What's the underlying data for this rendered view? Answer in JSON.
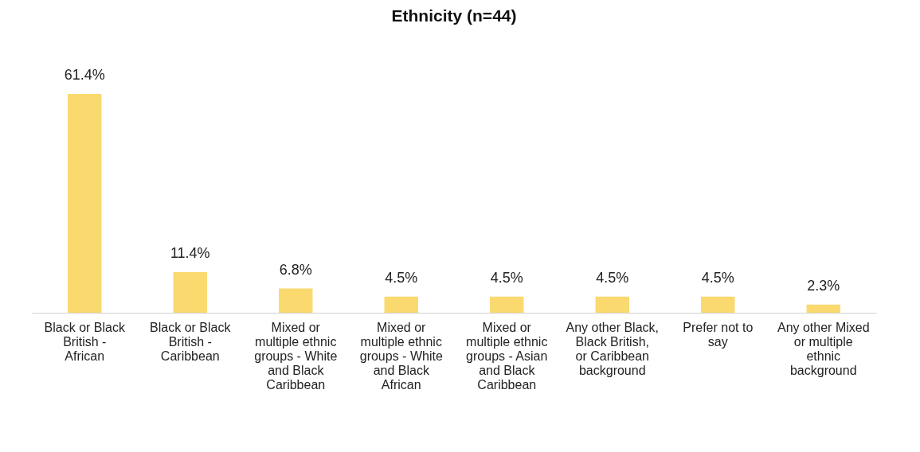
{
  "chart_data": {
    "type": "bar",
    "title": "Ethnicity (n=44)",
    "categories": [
      "Black or Black British - African",
      "Black or Black British - Caribbean",
      "Mixed or multiple ethnic groups - White and Black Caribbean",
      "Mixed or multiple ethnic groups - White and Black African",
      "Mixed or multiple ethnic groups - Asian and Black Caribbean",
      "Any other Black, Black British, or Caribbean background",
      "Prefer not to say",
      "Any other Mixed or multiple ethnic background"
    ],
    "values": [
      61.4,
      11.4,
      6.8,
      4.5,
      4.5,
      4.5,
      4.5,
      2.3
    ],
    "value_labels": [
      "61.4%",
      "11.4%",
      "6.8%",
      "4.5%",
      "4.5%",
      "4.5%",
      "4.5%",
      "2.3%"
    ],
    "color": "#fad96f",
    "grid": false
  }
}
